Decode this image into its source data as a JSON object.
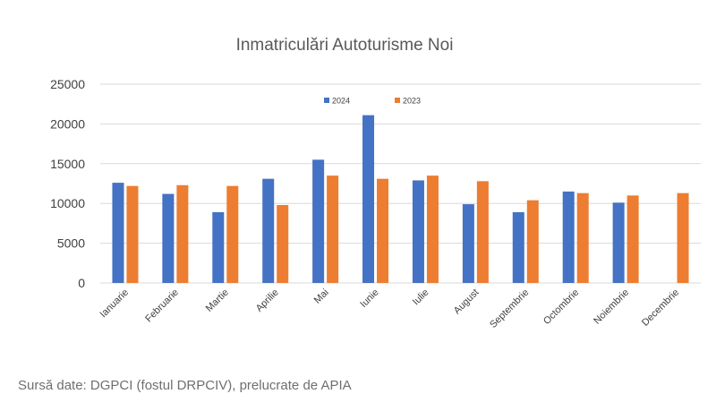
{
  "chart_data": {
    "type": "bar",
    "title": "Inmatriculări Autoturisme Noi",
    "xlabel": "",
    "ylabel": "",
    "ylim": [
      0,
      25000
    ],
    "yticks": [
      0,
      5000,
      10000,
      15000,
      20000,
      25000
    ],
    "grid": true,
    "legend_position": "top",
    "categories": [
      "Ianuarie",
      "Februarie",
      "Martie",
      "Aprilie",
      "Mai",
      "Iunie",
      "Iulie",
      "August",
      "Septembrie",
      "Octombrie",
      "Noiembrie",
      "Decembrie"
    ],
    "series": [
      {
        "name": "2024",
        "color": "#4472c4",
        "values": [
          12600,
          11200,
          8900,
          13100,
          15500,
          21100,
          12900,
          9900,
          8900,
          11500,
          10100,
          null
        ]
      },
      {
        "name": "2023",
        "color": "#ed7d31",
        "values": [
          12200,
          12300,
          12200,
          9800,
          13500,
          13100,
          13500,
          12800,
          10400,
          11300,
          11000,
          11300
        ]
      }
    ]
  },
  "source_note": "Sursă date: DGPCI (fostul DRPCIV), prelucrate de APIA"
}
